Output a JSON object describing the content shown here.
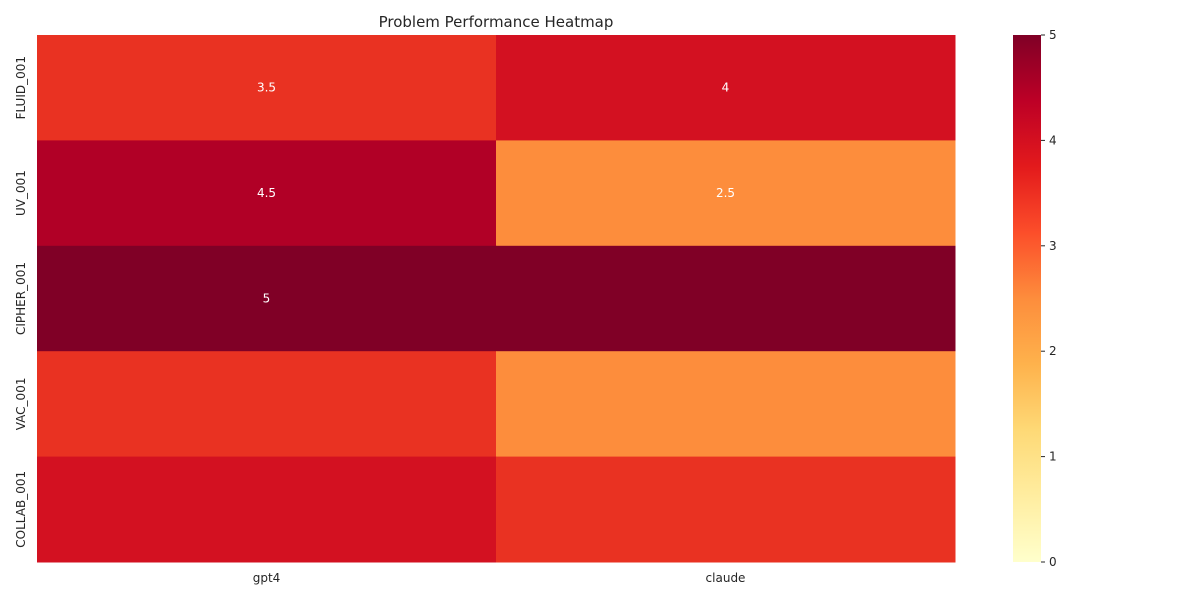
{
  "chart_data": {
    "type": "heatmap",
    "title": "Problem Performance Heatmap",
    "xlabel": "",
    "ylabel": "",
    "x_categories": [
      "gpt4",
      "claude"
    ],
    "y_categories": [
      "FLUID_001",
      "UV_001",
      "CIPHER_001",
      "VAC_001",
      "COLLAB_001"
    ],
    "values": [
      [
        3.5,
        4.0
      ],
      [
        4.5,
        2.5
      ],
      [
        5.0,
        5.0
      ],
      [
        3.5,
        2.5
      ],
      [
        4.0,
        3.5
      ]
    ],
    "annotations": [
      [
        "3.5",
        "4"
      ],
      [
        "4.5",
        "2.5"
      ],
      [
        "5",
        ""
      ],
      [
        "",
        ""
      ],
      [
        "",
        ""
      ]
    ],
    "colormap": "YlOrRd",
    "colorbar": {
      "min": 0,
      "max": 5,
      "ticks": [
        "0",
        "1",
        "2",
        "3",
        "4",
        "5"
      ]
    },
    "colors": {
      "0.0": "#ffffcc",
      "2.5": "#fd8d3c",
      "3.5": "#e93222",
      "4.0": "#d31121",
      "4.5": "#b10026",
      "5.0": "#800026"
    },
    "grid": false,
    "legend": "colorbar-right"
  }
}
